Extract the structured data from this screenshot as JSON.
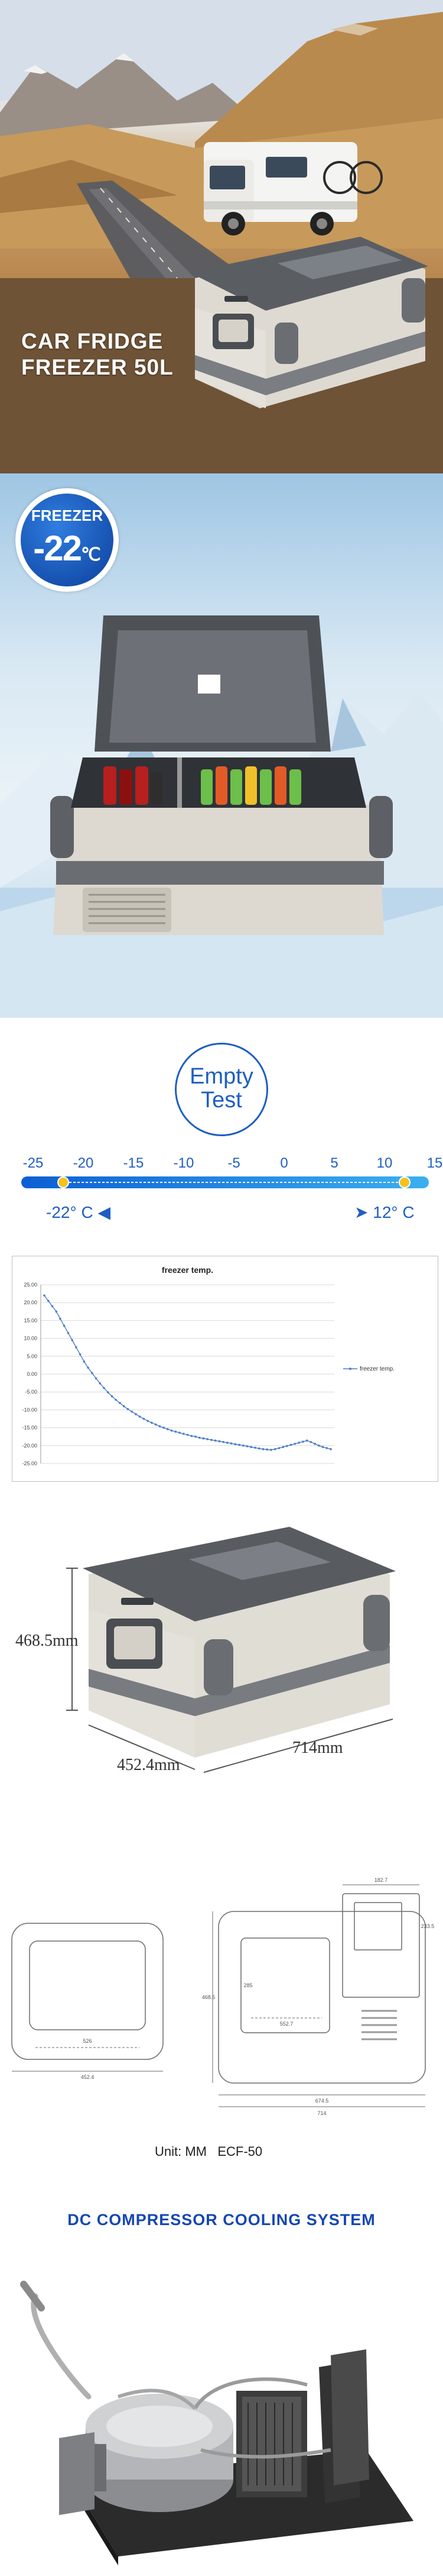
{
  "hero": {
    "title_line1": "CAR FRIDGE",
    "title_line2": "FREEZER 50L"
  },
  "freezer": {
    "badge_label": "FREEZER",
    "badge_temp": "-22",
    "badge_unit": "℃"
  },
  "empty_test": {
    "line1": "Empty",
    "line2": "Test",
    "scale_ticks": [
      "-25",
      "-20",
      "-15",
      "-10",
      "-5",
      "0",
      "5",
      "10",
      "15"
    ],
    "left_marker": -22,
    "right_marker": 12,
    "left_label": "-22° C",
    "right_label": "12° C"
  },
  "chart_data": {
    "type": "line",
    "title": "freezer temp.",
    "legend": "freezer temp.",
    "legend_position": "right",
    "ylim": [
      -25,
      25
    ],
    "yticks": [
      "25.00",
      "20.00",
      "15.00",
      "10.00",
      "5.00",
      "0.00",
      "-5.00",
      "-10.00",
      "-15.00",
      "-20.00",
      "-25.00"
    ],
    "grid": true,
    "values": [
      22.0,
      20.5,
      19.0,
      17.5,
      15.5,
      13.5,
      11.5,
      9.5,
      7.5,
      5.5,
      3.5,
      1.8,
      0.3,
      -1.2,
      -2.6,
      -3.9,
      -5.1,
      -6.2,
      -7.2,
      -8.1,
      -9.0,
      -9.8,
      -10.5,
      -11.2,
      -11.9,
      -12.5,
      -13.1,
      -13.6,
      -14.1,
      -14.6,
      -15.0,
      -15.4,
      -15.8,
      -16.1,
      -16.4,
      -16.7,
      -17.0,
      -17.3,
      -17.5,
      -17.8,
      -18.0,
      -18.2,
      -18.4,
      -18.6,
      -18.8,
      -19.0,
      -19.2,
      -19.4,
      -19.6,
      -19.8,
      -20.0,
      -20.2,
      -20.4,
      -20.6,
      -20.8,
      -21.0,
      -21.1,
      -21.2,
      -21.0,
      -20.7,
      -20.4,
      -20.1,
      -19.8,
      -19.5,
      -19.2,
      -18.9,
      -18.6,
      -19.0,
      -19.5,
      -20.0,
      -20.4,
      -20.7,
      -21.0
    ]
  },
  "dimensions": {
    "height": "468.5mm",
    "depth": "452.4mm",
    "width": "714mm"
  },
  "drawings": {
    "unit_label": "Unit: MM",
    "model": "ECF-50",
    "labels": {
      "front_inner": "526",
      "front_total": "452.4",
      "side_top": "182.7",
      "side_h1": "233.5",
      "side_height": "468.5",
      "side_inner_h": "285",
      "side_inner_w": "552.7",
      "side_w1": "674.5",
      "side_total": "714"
    }
  },
  "cooling": {
    "title": "DC COMPRESSOR COOLING SYSTEM"
  },
  "colors": {
    "brand_blue": "#1f5ec2",
    "scale_gradient_start": "#0c5fd3",
    "scale_gradient_end": "#3ab0f0",
    "marker_yellow": "#f5c21b",
    "series_line": "#4a7cc7"
  }
}
